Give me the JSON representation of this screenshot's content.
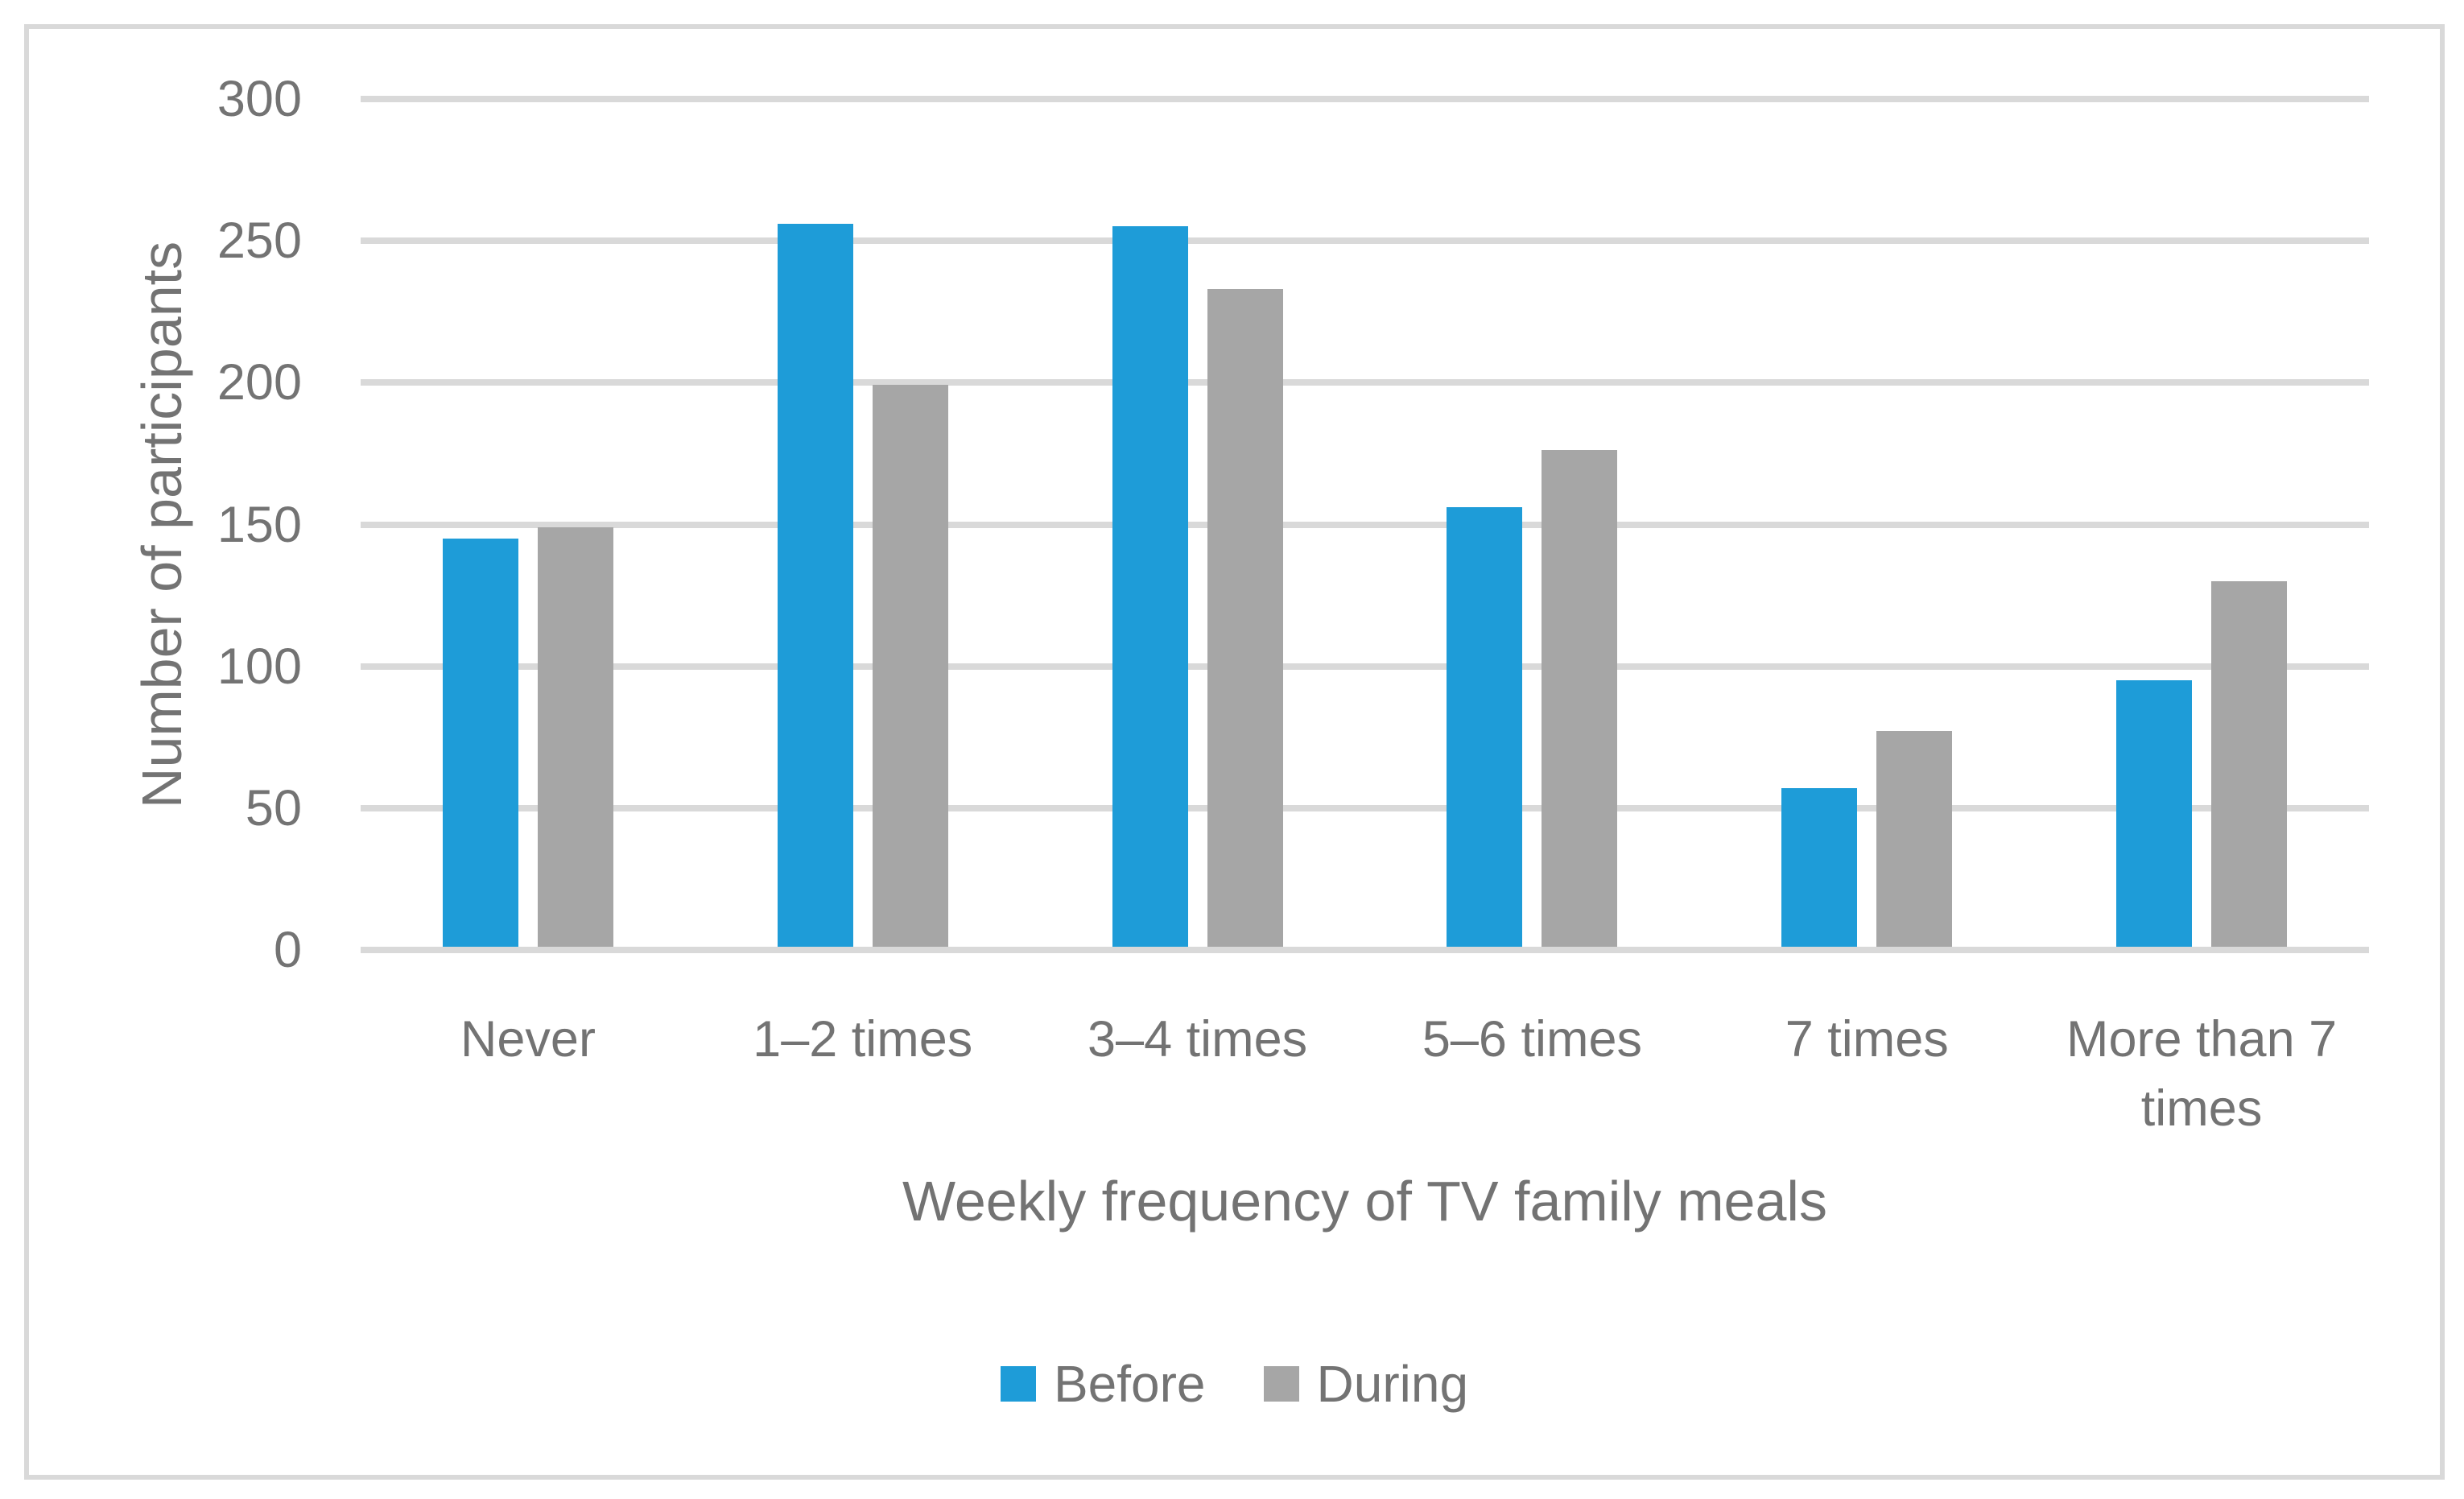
{
  "chart_data": {
    "type": "bar",
    "title": "",
    "categories": [
      "Never",
      "1–2 times",
      "3–4 times",
      "5–6 times",
      "7 times",
      "More than 7 times"
    ],
    "series": [
      {
        "name": "Before",
        "color": "#1E9CD8",
        "values": [
          144,
          255,
          254,
          155,
          56,
          94
        ]
      },
      {
        "name": "During",
        "color": "#A6A6A6",
        "values": [
          148,
          198,
          232,
          175,
          76,
          129
        ]
      }
    ],
    "xlabel": "Weekly frequency of TV family meals",
    "ylabel": "Number of participants",
    "ylim": [
      0,
      300
    ],
    "ytick_step": 50,
    "yticks": [
      "0",
      "50",
      "100",
      "150",
      "200",
      "250",
      "300"
    ],
    "grid": "horizontal-only",
    "legend_position": "bottom-center",
    "bar_orientation": "vertical"
  },
  "colors": {
    "gridline": "#D9D9D9",
    "axis_line": "#D9D9D9",
    "frame_border": "#D9D9D9",
    "text": "#737373",
    "background": "#FFFFFF"
  }
}
